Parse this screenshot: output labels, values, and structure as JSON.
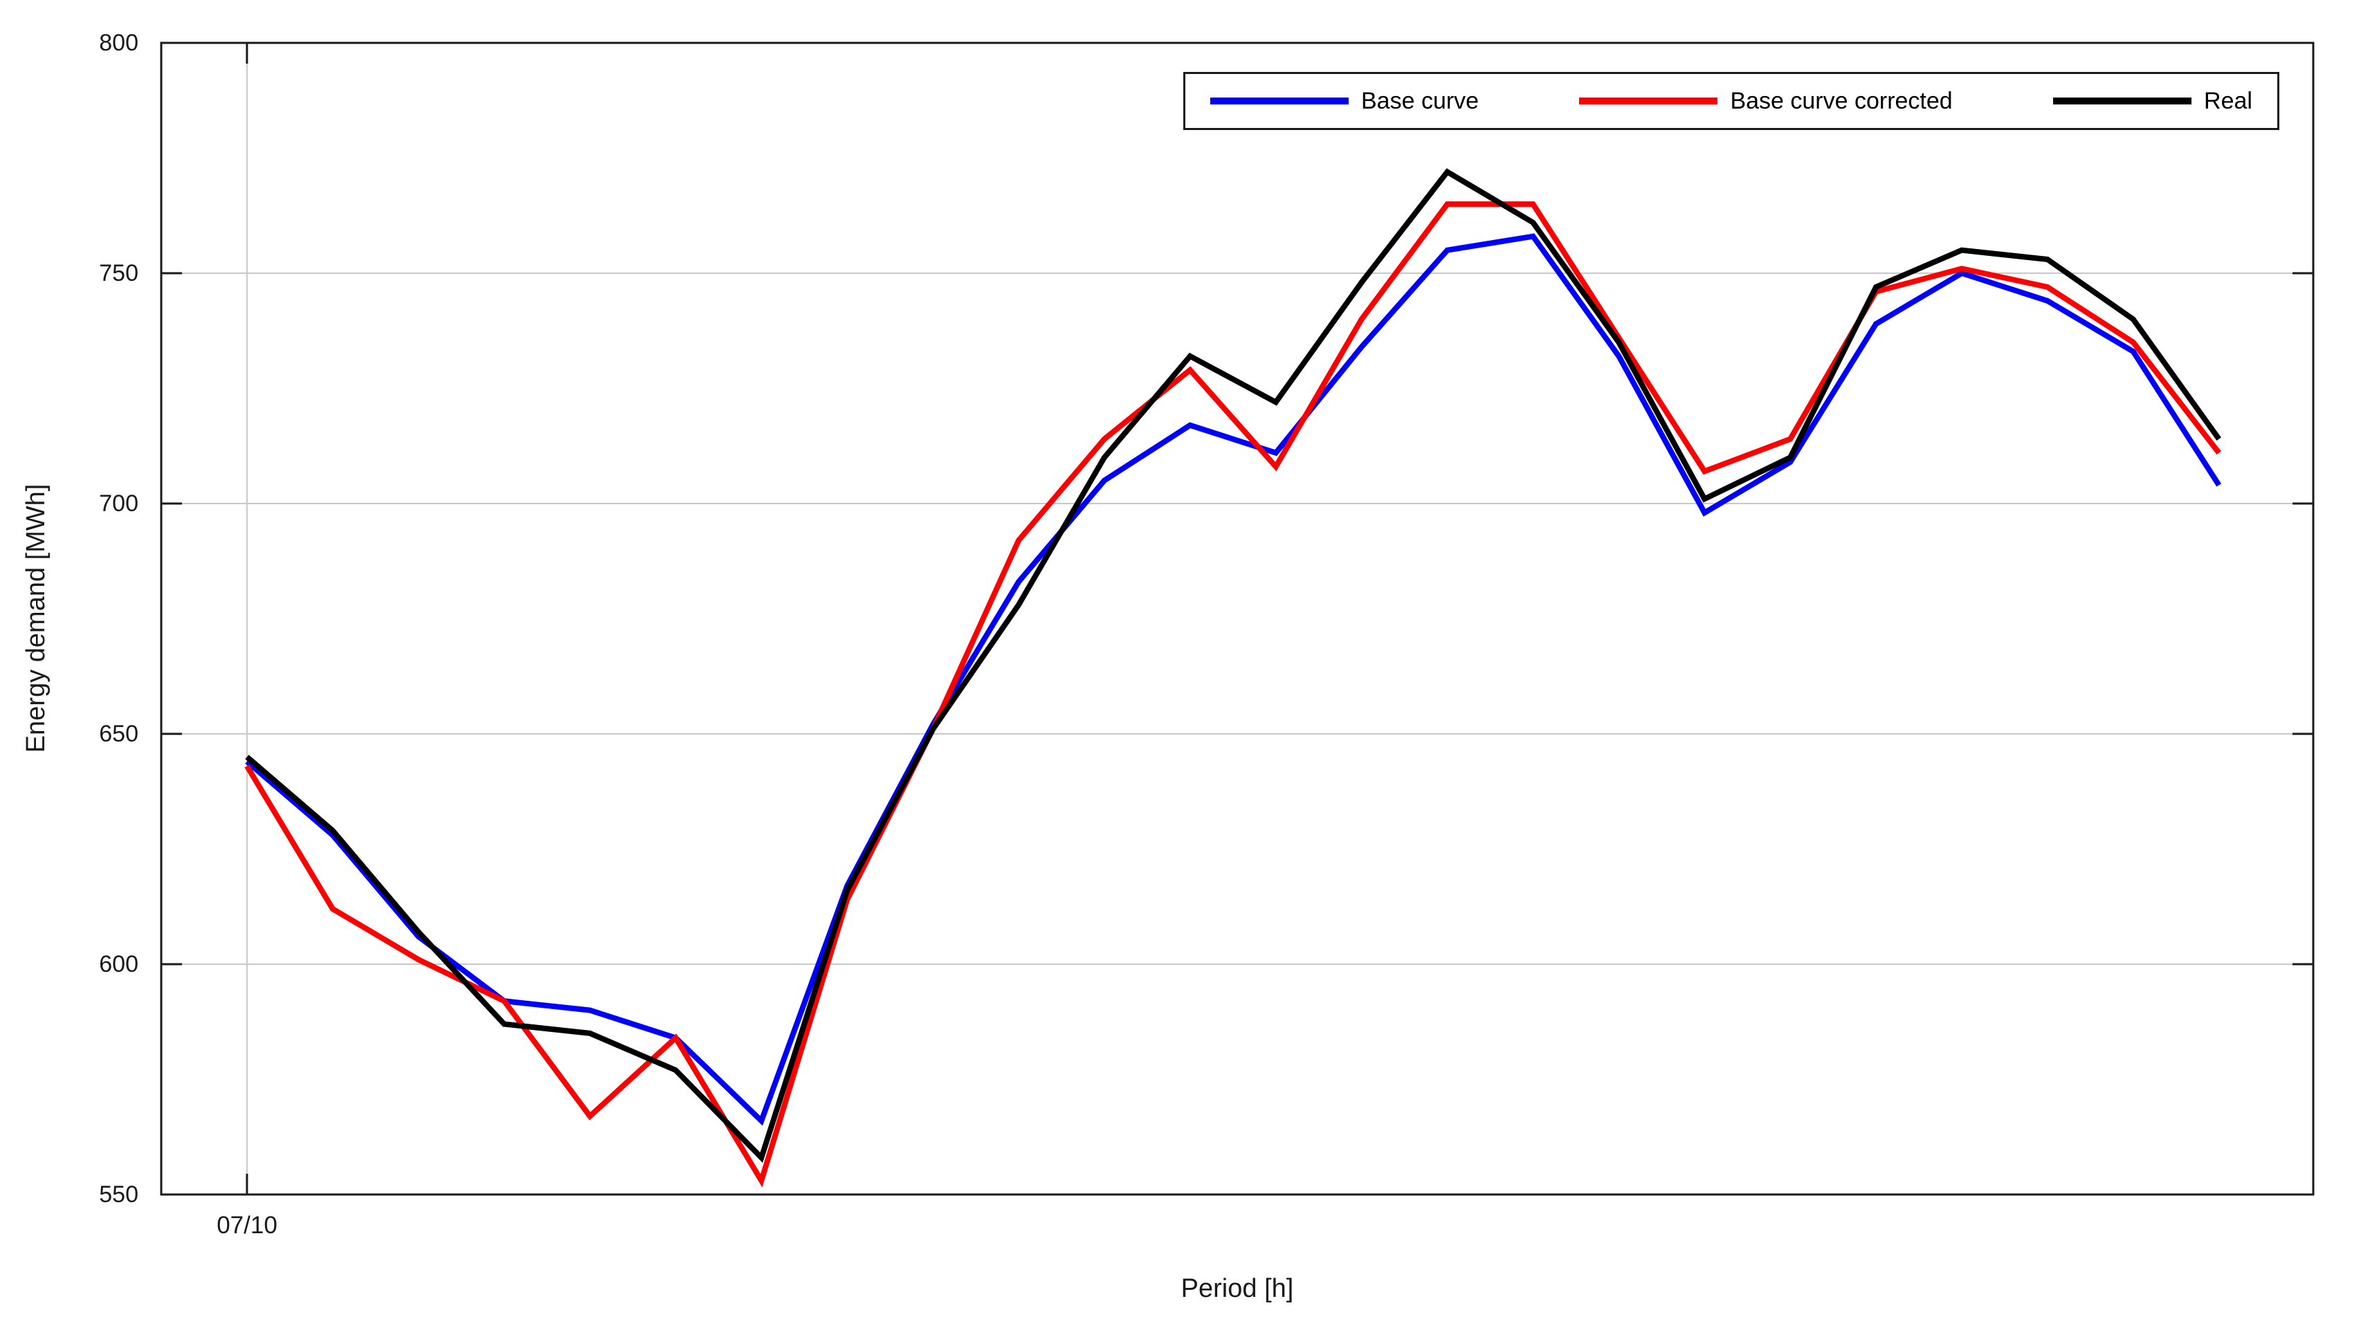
{
  "page": {
    "background": "#ffffff"
  },
  "chart_data": {
    "type": "line",
    "title": "",
    "xlabel": "Period [h]",
    "ylabel": "Energy demand [MWh]",
    "ylim": [
      550,
      800
    ],
    "xlim_hours": [
      -1,
      24.1
    ],
    "grid": {
      "horizontal": [
        600,
        650,
        700,
        750
      ],
      "vertical_hours": [
        0
      ],
      "color": "#c8c8c8"
    },
    "axis_color": "#1a1a1a",
    "x": [
      0,
      1,
      2,
      3,
      4,
      5,
      6,
      7,
      8,
      9,
      10,
      11,
      12,
      13,
      14,
      15,
      16,
      17,
      18,
      19,
      20,
      21,
      22,
      23
    ],
    "series": [
      {
        "name": "Base curve",
        "color": "#0000ff",
        "values": [
          644,
          628,
          606,
          592,
          590,
          584,
          566,
          617,
          652,
          683,
          705,
          717,
          711,
          734,
          755,
          758,
          732,
          698,
          709,
          739,
          750,
          744,
          733,
          704
        ]
      },
      {
        "name": "Base curve corrected",
        "color": "#ff0000",
        "values": [
          643,
          612,
          601,
          592,
          567,
          584,
          553,
          614,
          651,
          692,
          714,
          729,
          708,
          740,
          765,
          765,
          736,
          707,
          714,
          746,
          751,
          747,
          735,
          711
        ]
      },
      {
        "name": "Real",
        "color": "#000000",
        "values": [
          645,
          629,
          607,
          587,
          585,
          577,
          558,
          616,
          651,
          678,
          710,
          732,
          722,
          748,
          772,
          761,
          735,
          701,
          710,
          747,
          755,
          753,
          740,
          714
        ]
      }
    ],
    "y_axis": {
      "ticks": [
        {
          "value": 550,
          "label": "550"
        },
        {
          "value": 600,
          "label": "600"
        },
        {
          "value": 650,
          "label": "650"
        },
        {
          "value": 700,
          "label": "700"
        },
        {
          "value": 750,
          "label": "750"
        },
        {
          "value": 800,
          "label": "800"
        }
      ]
    },
    "x_axis": {
      "ticks": [
        {
          "hour": 0,
          "label": "07/10"
        }
      ]
    },
    "legend": {
      "position": "top-right",
      "border_color": "#1a1a1a",
      "background": "#ffffff"
    }
  }
}
